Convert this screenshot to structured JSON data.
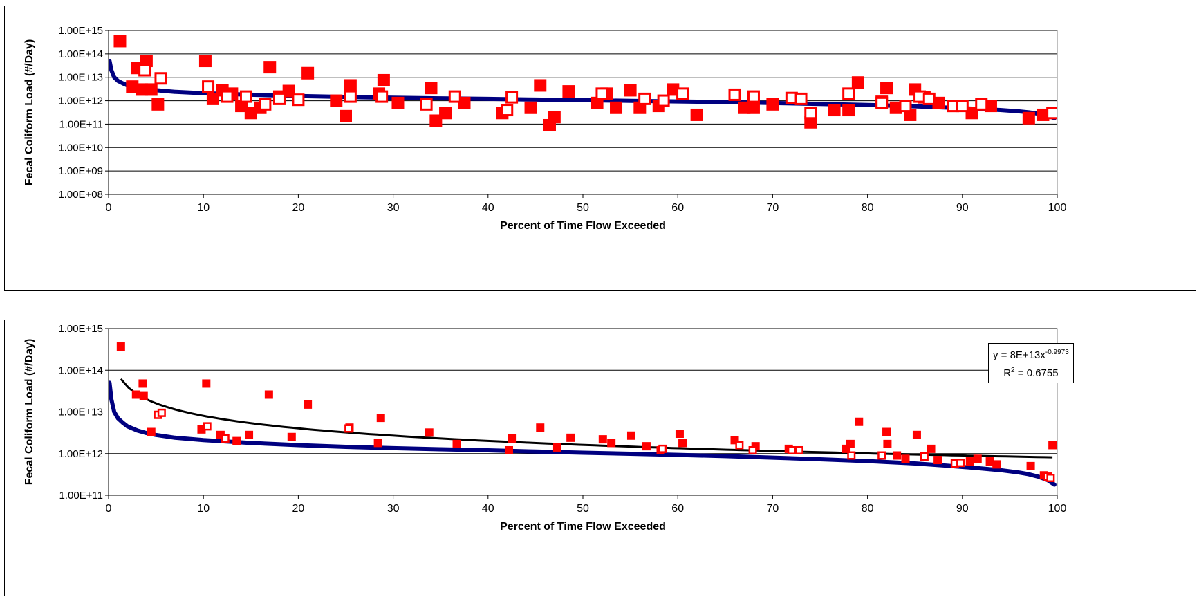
{
  "chart_data": [
    {
      "type": "scatter",
      "title": "",
      "xlabel": "Percent of Time Flow Exceeded",
      "ylabel": "Fecal Coliform Load (#/Day)",
      "xlim": [
        0,
        100
      ],
      "ylim": [
        100000000.0,
        1000000000000000.0
      ],
      "yscale": "log",
      "x_ticks": [
        "0",
        "10",
        "20",
        "30",
        "40",
        "50",
        "60",
        "70",
        "80",
        "90",
        "100"
      ],
      "y_ticks": [
        "1.00E+08",
        "1.00E+09",
        "1.00E+10",
        "1.00E+11",
        "1.00E+12",
        "1.00E+13",
        "1.00E+14",
        "1.00E+15"
      ],
      "grid": "horizontal",
      "colors": {
        "curve": "#000080",
        "points": "#ff0000"
      },
      "series": [
        {
          "kind": "curve",
          "x": [
            0.1,
            0.3,
            0.6,
            1,
            1.5,
            2,
            3,
            4,
            5,
            7,
            10,
            15,
            20,
            25,
            30,
            35,
            40,
            45,
            50,
            55,
            60,
            65,
            70,
            75,
            80,
            85,
            88,
            90,
            92,
            94,
            96,
            97,
            98,
            99,
            99.7
          ],
          "y": [
            50000000000000.0,
            20000000000000.0,
            10000000000000.0,
            7000000000000.0,
            5500000000000.0,
            4500000000000.0,
            3600000000000.0,
            3100000000000.0,
            2800000000000.0,
            2400000000000.0,
            2100000000000.0,
            1800000000000.0,
            1600000000000.0,
            1450000000000.0,
            1350000000000.0,
            1270000000000.0,
            1200000000000.0,
            1120000000000.0,
            1050000000000.0,
            990000000000.0,
            930000000000.0,
            870000000000.0,
            800000000000.0,
            730000000000.0,
            660000000000.0,
            580000000000.0,
            520000000000.0,
            480000000000.0,
            440000000000.0,
            400000000000.0,
            350000000000.0,
            320000000000.0,
            280000000000.0,
            230000000000.0,
            180000000000.0
          ]
        },
        {
          "kind": "filled-squares",
          "x": [
            1.2,
            2.5,
            3,
            3.5,
            4,
            4.5,
            5.2,
            10.2,
            11,
            12,
            13,
            14,
            15,
            16,
            17,
            18,
            19,
            21,
            24,
            25,
            25.5,
            28.5,
            29,
            30.5,
            34,
            34.5,
            35.5,
            37.5,
            41.5,
            44.5,
            45.5,
            46.5,
            47,
            48.5,
            51.5,
            52.5,
            53.5,
            55,
            56,
            58,
            59.5,
            62,
            67,
            68,
            70,
            74,
            76.5,
            78,
            79,
            81.5,
            82,
            83,
            84.5,
            85,
            86,
            87.5,
            89,
            91,
            93,
            97,
            98.5
          ],
          "y": [
            350000000000000.0,
            4000000000000.0,
            25000000000000.0,
            3000000000000.0,
            50000000000000.0,
            3000000000000.0,
            700000000000.0,
            50000000000000.0,
            1200000000000.0,
            2800000000000.0,
            2000000000000.0,
            600000000000.0,
            300000000000.0,
            500000000000.0,
            27000000000000.0,
            1500000000000.0,
            2600000000000.0,
            15000000000000.0,
            1000000000000.0,
            220000000000.0,
            4500000000000.0,
            2000000000000.0,
            7500000000000.0,
            800000000000.0,
            3500000000000.0,
            140000000000.0,
            300000000000.0,
            800000000000.0,
            300000000000.0,
            500000000000.0,
            4500000000000.0,
            90000000000.0,
            200000000000.0,
            2500000000000.0,
            800000000000.0,
            2000000000000.0,
            500000000000.0,
            2800000000000.0,
            500000000000.0,
            600000000000.0,
            3000000000000.0,
            250000000000.0,
            500000000000.0,
            500000000000.0,
            700000000000.0,
            120000000000.0,
            400000000000.0,
            400000000000.0,
            6000000000000.0,
            900000000000.0,
            3500000000000.0,
            500000000000.0,
            250000000000.0,
            3000000000000.0,
            1400000000000.0,
            800000000000.0,
            600000000000.0,
            300000000000.0,
            600000000000.0,
            180000000000.0,
            250000000000.0
          ]
        },
        {
          "kind": "open-squares",
          "x": [
            3.8,
            5.5,
            10.5,
            12.5,
            14.5,
            16.5,
            18,
            20,
            25.5,
            28.8,
            33.5,
            36.5,
            42,
            42.5,
            52,
            56.5,
            58.5,
            60.5,
            66,
            68,
            72,
            73,
            74,
            78,
            81.5,
            84,
            85.5,
            86.5,
            89,
            90,
            92,
            99.5
          ],
          "y": [
            20000000000000.0,
            9000000000000.0,
            4000000000000.0,
            1500000000000.0,
            1500000000000.0,
            700000000000.0,
            1200000000000.0,
            1100000000000.0,
            1500000000000.0,
            1500000000000.0,
            700000000000.0,
            1500000000000.0,
            400000000000.0,
            1400000000000.0,
            2000000000000.0,
            1200000000000.0,
            1000000000000.0,
            2000000000000.0,
            1800000000000.0,
            1500000000000.0,
            1300000000000.0,
            1200000000000.0,
            300000000000.0,
            2000000000000.0,
            800000000000.0,
            600000000000.0,
            1500000000000.0,
            1200000000000.0,
            600000000000.0,
            600000000000.0,
            700000000000.0,
            300000000000.0
          ]
        }
      ]
    },
    {
      "type": "scatter",
      "title": "",
      "xlabel": "Percent of Time Flow Exceeded",
      "ylabel": "Fecal Coliform Load (#/Day)",
      "xlim": [
        0,
        100
      ],
      "ylim": [
        100000000000.0,
        1000000000000000.0
      ],
      "yscale": "log",
      "x_ticks": [
        "0",
        "10",
        "20",
        "30",
        "40",
        "50",
        "60",
        "70",
        "80",
        "90",
        "100"
      ],
      "y_ticks": [
        "1.00E+11",
        "1.00E+12",
        "1.00E+13",
        "1.00E+14",
        "1.00E+15"
      ],
      "grid": "horizontal",
      "colors": {
        "curve": "#000080",
        "points": "#ff0000",
        "trend": "#000000"
      },
      "trendline": {
        "equation_prefix": "y = 8E+13x",
        "equation_exponent": "-0.9973",
        "r2_prefix": "R",
        "r2_exponent": "2",
        "r2_suffix": " = 0.6755",
        "a": 80000000000000.0,
        "b": -0.9973,
        "x_start": 1.3,
        "x_end": 99.5
      },
      "series": [
        {
          "kind": "curve",
          "x": [
            0.1,
            0.3,
            0.6,
            1,
            1.5,
            2,
            3,
            4,
            5,
            7,
            10,
            15,
            20,
            25,
            30,
            35,
            40,
            45,
            50,
            55,
            60,
            65,
            70,
            75,
            80,
            85,
            88,
            90,
            92,
            94,
            96,
            97,
            98,
            99,
            99.7
          ],
          "y": [
            50000000000000.0,
            20000000000000.0,
            10000000000000.0,
            7000000000000.0,
            5500000000000.0,
            4500000000000.0,
            3600000000000.0,
            3100000000000.0,
            2800000000000.0,
            2400000000000.0,
            2100000000000.0,
            1800000000000.0,
            1600000000000.0,
            1450000000000.0,
            1350000000000.0,
            1270000000000.0,
            1200000000000.0,
            1120000000000.0,
            1050000000000.0,
            990000000000.0,
            930000000000.0,
            870000000000.0,
            800000000000.0,
            730000000000.0,
            660000000000.0,
            580000000000.0,
            520000000000.0,
            480000000000.0,
            440000000000.0,
            400000000000.0,
            350000000000.0,
            320000000000.0,
            280000000000.0,
            230000000000.0,
            180000000000.0
          ]
        },
        {
          "kind": "filled-squares",
          "x": [
            1.3,
            2.9,
            3.6,
            3.7,
            4.5,
            10.3,
            9.8,
            11.8,
            13.5,
            14.8,
            16.9,
            19.3,
            21,
            25.4,
            28.4,
            28.7,
            33.8,
            36.7,
            42.2,
            42.5,
            45.5,
            47.3,
            48.7,
            52.1,
            53,
            55.1,
            56.7,
            58.2,
            60.2,
            60.5,
            66,
            68.2,
            71.7,
            77.7,
            78.2,
            79.1,
            82,
            82.1,
            83.1,
            84,
            85.2,
            86.7,
            87.4,
            90.8,
            91.6,
            92.9,
            93.6,
            97.2,
            98.6,
            99.5
          ],
          "y": [
            370000000000000.0,
            26000000000000.0,
            48000000000000.0,
            24000000000000.0,
            3300000000000.0,
            48000000000000.0,
            3800000000000.0,
            2800000000000.0,
            2000000000000.0,
            2800000000000.0,
            26000000000000.0,
            2500000000000.0,
            15000000000000.0,
            4200000000000.0,
            1800000000000.0,
            7200000000000.0,
            3200000000000.0,
            1700000000000.0,
            1200000000000.0,
            2300000000000.0,
            4200000000000.0,
            1400000000000.0,
            2400000000000.0,
            2200000000000.0,
            1800000000000.0,
            2700000000000.0,
            1500000000000.0,
            1200000000000.0,
            3000000000000.0,
            1800000000000.0,
            2100000000000.0,
            1500000000000.0,
            1300000000000.0,
            1300000000000.0,
            1700000000000.0,
            5800000000000.0,
            3300000000000.0,
            1700000000000.0,
            900000000000.0,
            750000000000.0,
            2800000000000.0,
            1300000000000.0,
            700000000000.0,
            650000000000.0,
            750000000000.0,
            650000000000.0,
            550000000000.0,
            500000000000.0,
            300000000000.0,
            1600000000000.0
          ]
        },
        {
          "kind": "open-squares",
          "x": [
            5.2,
            5.6,
            10.4,
            12.3,
            25.3,
            58.4,
            66.5,
            67.9,
            72,
            72.8,
            78.3,
            81.5,
            86,
            89.2,
            89.8,
            99,
            99.3
          ],
          "y": [
            8500000000000.0,
            9500000000000.0,
            4500000000000.0,
            2300000000000.0,
            4000000000000.0,
            1300000000000.0,
            1600000000000.0,
            1200000000000.0,
            1200000000000.0,
            1200000000000.0,
            900000000000.0,
            900000000000.0,
            850000000000.0,
            580000000000.0,
            600000000000.0,
            280000000000.0,
            260000000000.0
          ]
        }
      ]
    }
  ]
}
